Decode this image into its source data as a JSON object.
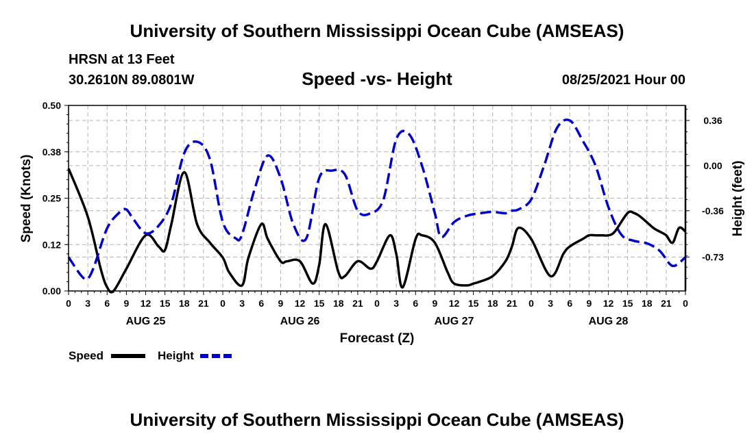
{
  "page": {
    "top_title": "University of Southern Mississippi Ocean Cube (AMSEAS)",
    "bottom_title": "University of Southern Mississippi Ocean Cube (AMSEAS)",
    "station_name": "HRSN at 13 Feet",
    "station_coords": "30.2610N  89.0801W",
    "chart_title": "Speed -vs- Height",
    "run_time": "08/25/2021 Hour 00"
  },
  "colors": {
    "speed": "#000000",
    "height": "#0000cc",
    "grid": "#b4b4b4"
  },
  "chart_data": {
    "type": "line",
    "title": "Speed -vs- Height",
    "xlabel": "Forecast (Z)",
    "ylabel": "Speed (Knots)",
    "y2label": "Height (feet)",
    "xlim": [
      0,
      96
    ],
    "ylim": [
      0,
      0.5
    ],
    "y2lim": [
      -1.0,
      0.48
    ],
    "grid": true,
    "legend_position": "bottom-left",
    "x_tick_labels": [
      "0",
      "3",
      "6",
      "9",
      "12",
      "15",
      "18",
      "21",
      "0",
      "3",
      "6",
      "9",
      "12",
      "15",
      "18",
      "21",
      "0",
      "3",
      "6",
      "9",
      "12",
      "15",
      "18",
      "21",
      "0",
      "3",
      "6",
      "9",
      "12",
      "15",
      "18",
      "21",
      "0"
    ],
    "day_labels": [
      {
        "label": "AUG 25",
        "hour": 12
      },
      {
        "label": "AUG 26",
        "hour": 36
      },
      {
        "label": "AUG 27",
        "hour": 60
      },
      {
        "label": "AUG 28",
        "hour": 84
      }
    ],
    "y_ticks": [
      {
        "label": "0.00",
        "value": 0
      },
      {
        "label": "0.12",
        "value": 0.125
      },
      {
        "label": "0.25",
        "value": 0.25
      },
      {
        "label": "0.38",
        "value": 0.375
      },
      {
        "label": "0.50",
        "value": 0.5
      }
    ],
    "y2_ticks": [
      {
        "label": "0.36",
        "value": 0.36
      },
      {
        "label": "0.00",
        "value": 0.0
      },
      {
        "label": "-0.36",
        "value": -0.36
      },
      {
        "label": "-0.73",
        "value": -0.73
      }
    ],
    "series": [
      {
        "name": "Speed",
        "axis": "left",
        "style": "solid",
        "x": [
          0,
          3,
          5,
          6,
          7,
          9,
          12,
          14,
          15,
          16,
          18,
          20,
          22,
          24,
          25,
          27,
          28,
          30,
          31,
          33,
          34,
          36,
          38,
          39,
          40,
          42,
          43,
          45,
          47,
          48,
          50,
          51,
          52,
          54,
          55,
          57,
          59,
          60,
          62,
          63,
          64,
          66,
          68,
          69,
          70,
          72,
          75,
          77,
          78,
          80,
          81,
          82,
          83,
          84,
          85,
          87,
          88,
          89,
          91,
          92,
          93,
          94,
          95,
          96
        ],
        "values": [
          0.33,
          0.2,
          0.06,
          0.01,
          0.0,
          0.06,
          0.15,
          0.12,
          0.11,
          0.18,
          0.32,
          0.18,
          0.13,
          0.09,
          0.05,
          0.015,
          0.09,
          0.18,
          0.14,
          0.08,
          0.08,
          0.08,
          0.02,
          0.07,
          0.18,
          0.05,
          0.04,
          0.08,
          0.06,
          0.08,
          0.15,
          0.1,
          0.01,
          0.14,
          0.15,
          0.13,
          0.05,
          0.02,
          0.015,
          0.02,
          0.025,
          0.04,
          0.08,
          0.12,
          0.17,
          0.14,
          0.04,
          0.1,
          0.12,
          0.14,
          0.15,
          0.15,
          0.15,
          0.15,
          0.16,
          0.21,
          0.21,
          0.2,
          0.17,
          0.16,
          0.15,
          0.13,
          0.17,
          0.16
        ]
      },
      {
        "name": "Height",
        "axis": "right",
        "style": "dashed",
        "x": [
          0,
          2,
          3,
          4,
          6,
          8,
          9,
          10,
          12,
          14,
          16,
          18,
          20,
          22,
          24,
          26,
          27,
          29,
          31,
          33,
          35,
          37,
          39,
          41,
          43,
          45,
          47,
          49,
          51,
          53,
          55,
          57,
          58,
          60,
          62,
          64,
          66,
          68,
          69,
          70,
          72,
          74,
          76,
          78,
          80,
          82,
          84,
          86,
          88,
          90,
          92,
          94,
          96
        ],
        "values": [
          -0.73,
          -0.88,
          -0.9,
          -0.8,
          -0.5,
          -0.37,
          -0.35,
          -0.42,
          -0.54,
          -0.48,
          -0.3,
          0.1,
          0.19,
          0.05,
          -0.45,
          -0.58,
          -0.55,
          -0.18,
          0.08,
          -0.1,
          -0.47,
          -0.58,
          -0.1,
          -0.04,
          -0.07,
          -0.36,
          -0.38,
          -0.27,
          0.21,
          0.25,
          0.0,
          -0.38,
          -0.57,
          -0.45,
          -0.4,
          -0.38,
          -0.37,
          -0.38,
          -0.36,
          -0.35,
          -0.27,
          0.0,
          0.3,
          0.36,
          0.2,
          0.0,
          -0.33,
          -0.55,
          -0.6,
          -0.62,
          -0.68,
          -0.8,
          -0.73
        ]
      }
    ],
    "legend": [
      {
        "label": "Speed",
        "style": "solid"
      },
      {
        "label": "Height",
        "style": "dashed"
      }
    ]
  }
}
